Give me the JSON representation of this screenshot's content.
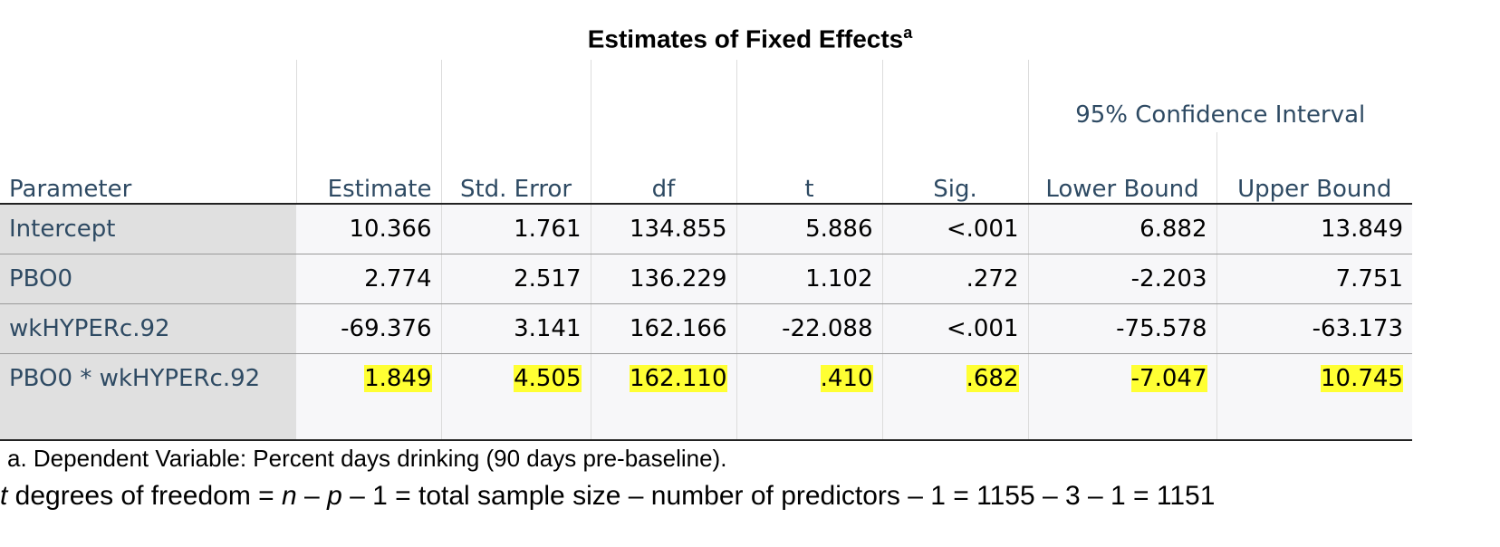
{
  "title": "Estimates of Fixed Effects",
  "title_sup": "a",
  "ci_header": "95% Confidence Interval",
  "columns": [
    "Parameter",
    "Estimate",
    "Std. Error",
    "df",
    "t",
    "Sig.",
    "Lower Bound",
    "Upper Bound"
  ],
  "rows": [
    {
      "label": "Intercept",
      "values": [
        "10.366",
        "1.761",
        "134.855",
        "5.886",
        "<.001",
        "6.882",
        "13.849"
      ],
      "highlighted": false
    },
    {
      "label": "PBO0",
      "values": [
        "2.774",
        "2.517",
        "136.229",
        "1.102",
        ".272",
        "-2.203",
        "7.751"
      ],
      "highlighted": false
    },
    {
      "label": "wkHYPERc.92",
      "values": [
        "-69.376",
        "3.141",
        "162.166",
        "-22.088",
        "<.001",
        "-75.578",
        "-63.173"
      ],
      "highlighted": false
    },
    {
      "label": "PBO0 * wkHYPERc.92",
      "values": [
        "1.849",
        "4.505",
        "162.110",
        ".410",
        ".682",
        "-7.047",
        "10.745"
      ],
      "highlighted": true
    }
  ],
  "footnote": "a. Dependent Variable: Percent days drinking (90 days pre-baseline).",
  "formula": {
    "t": "t",
    "p1": " degrees of freedom = ",
    "n": "n",
    "p2": " – ",
    "p": "p",
    "p3": " – 1 = total sample size – number of predictors – 1 = 1155 – 3 – 1 = 1151"
  },
  "highlight_color": "#ffff33",
  "header_text_color": "#2e4a63"
}
